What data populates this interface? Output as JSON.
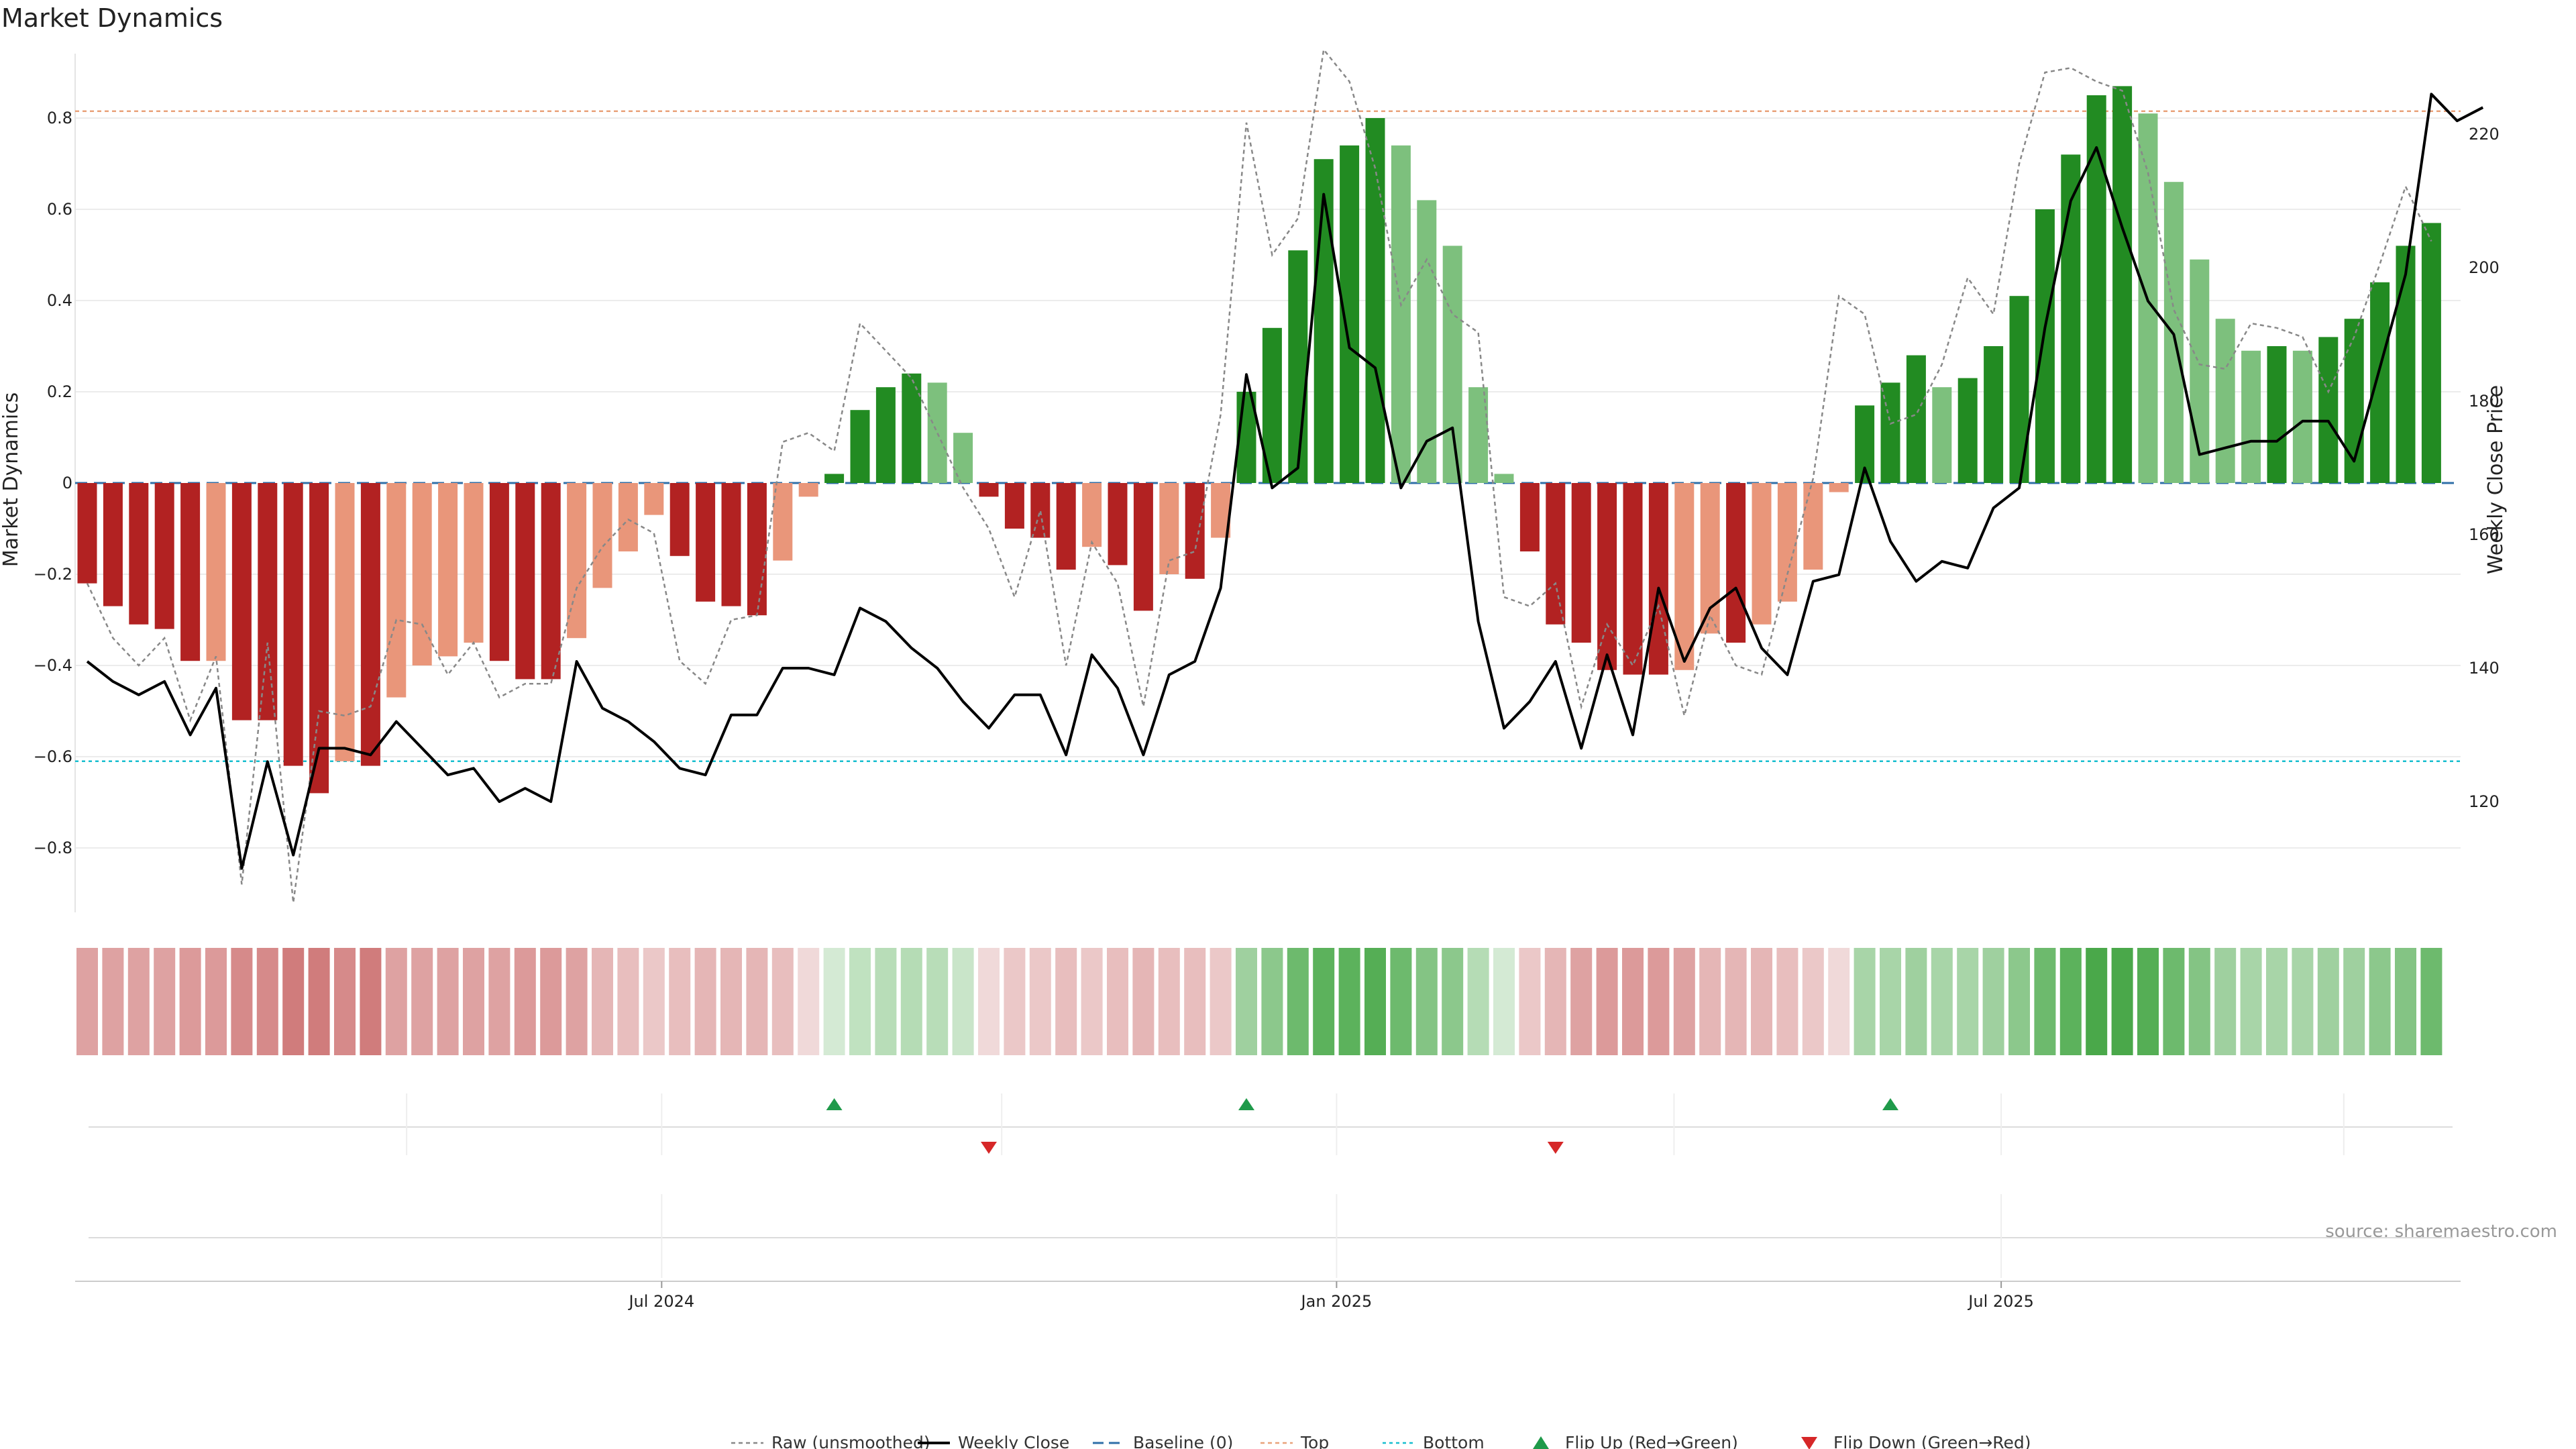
{
  "chart_data": {
    "type": "bar",
    "title": "Market Dynamics",
    "ylabel": "Market Dynamics",
    "y2label": "Weekly Close Price",
    "ylim": [
      -0.95,
      0.95
    ],
    "y2lim": [
      104,
      233
    ],
    "yticks": [
      "0.8",
      "0.6",
      "0.4",
      "0.2",
      "0",
      "−0.2",
      "−0.4",
      "−0.6",
      "−0.8"
    ],
    "y2ticks": [
      "220",
      "200",
      "180",
      "160",
      "140",
      "120"
    ],
    "xticks": [
      {
        "label": "Jul 2024",
        "week": 22.3
      },
      {
        "label": "Jan 2025",
        "week": 48.5
      },
      {
        "label": "Jul 2025",
        "week": 74.3
      }
    ],
    "top_line": 0.815,
    "bottom_line": -0.61,
    "baseline": 0,
    "values": [
      -0.22,
      -0.27,
      -0.31,
      -0.32,
      -0.39,
      -0.39,
      -0.52,
      -0.52,
      -0.62,
      -0.68,
      -0.61,
      -0.62,
      -0.47,
      -0.4,
      -0.38,
      -0.35,
      -0.39,
      -0.43,
      -0.43,
      -0.34,
      -0.23,
      -0.15,
      -0.07,
      -0.16,
      -0.26,
      -0.27,
      -0.29,
      -0.17,
      -0.03,
      0.02,
      0.16,
      0.21,
      0.24,
      0.22,
      0.11,
      -0.03,
      -0.1,
      -0.12,
      -0.19,
      -0.14,
      -0.18,
      -0.28,
      -0.2,
      -0.21,
      -0.12,
      0.2,
      0.34,
      0.51,
      0.71,
      0.74,
      0.8,
      0.74,
      0.62,
      0.52,
      0.21,
      0.02,
      -0.15,
      -0.31,
      -0.35,
      -0.41,
      -0.42,
      -0.42,
      -0.41,
      -0.33,
      -0.35,
      -0.31,
      -0.26,
      -0.19,
      -0.02,
      0.17,
      0.22,
      0.28,
      0.21,
      0.23,
      0.3,
      0.41,
      0.6,
      0.72,
      0.85,
      0.87,
      0.81,
      0.66,
      0.49,
      0.36,
      0.29,
      0.3,
      0.29,
      0.32,
      0.36,
      0.44,
      0.52,
      0.57
    ],
    "bar_colors": [
      "#b22222",
      "#b22222",
      "#b22222",
      "#b22222",
      "#b22222",
      "#e9967a",
      "#b22222",
      "#b22222",
      "#b22222",
      "#b22222",
      "#e9967a",
      "#b22222",
      "#e9967a",
      "#e9967a",
      "#e9967a",
      "#e9967a",
      "#b22222",
      "#b22222",
      "#b22222",
      "#e9967a",
      "#e9967a",
      "#e9967a",
      "#e9967a",
      "#b22222",
      "#b22222",
      "#b22222",
      "#b22222",
      "#e9967a",
      "#e9967a",
      "#228b22",
      "#228b22",
      "#228b22",
      "#228b22",
      "#7dc07d",
      "#7dc07d",
      "#b22222",
      "#b22222",
      "#b22222",
      "#b22222",
      "#e9967a",
      "#b22222",
      "#b22222",
      "#e9967a",
      "#b22222",
      "#e9967a",
      "#228b22",
      "#228b22",
      "#228b22",
      "#228b22",
      "#228b22",
      "#228b22",
      "#7dc07d",
      "#7dc07d",
      "#7dc07d",
      "#7dc07d",
      "#7dc07d",
      "#b22222",
      "#b22222",
      "#b22222",
      "#b22222",
      "#b22222",
      "#b22222",
      "#e9967a",
      "#e9967a",
      "#b22222",
      "#e9967a",
      "#e9967a",
      "#e9967a",
      "#e9967a",
      "#228b22",
      "#228b22",
      "#228b22",
      "#7dc07d",
      "#228b22",
      "#228b22",
      "#228b22",
      "#228b22",
      "#228b22",
      "#228b22",
      "#228b22",
      "#7dc07d",
      "#7dc07d",
      "#7dc07d",
      "#7dc07d",
      "#7dc07d",
      "#228b22",
      "#7dc07d",
      "#228b22",
      "#228b22",
      "#228b22",
      "#228b22",
      "#228b22"
    ],
    "raw": [
      -0.22,
      -0.34,
      -0.4,
      -0.34,
      -0.52,
      -0.38,
      -0.88,
      -0.35,
      -0.92,
      -0.5,
      -0.51,
      -0.49,
      -0.3,
      -0.31,
      -0.42,
      -0.35,
      -0.47,
      -0.44,
      -0.44,
      -0.23,
      -0.14,
      -0.08,
      -0.11,
      -0.39,
      -0.44,
      -0.3,
      -0.29,
      0.09,
      0.11,
      0.07,
      0.35,
      0.29,
      0.23,
      0.11,
      -0.01,
      -0.1,
      -0.25,
      -0.06,
      -0.4,
      -0.13,
      -0.22,
      -0.49,
      -0.17,
      -0.15,
      0.15,
      0.79,
      0.5,
      0.58,
      0.95,
      0.88,
      0.69,
      0.39,
      0.49,
      0.37,
      0.33,
      -0.25,
      -0.27,
      -0.22,
      -0.49,
      -0.31,
      -0.4,
      -0.27,
      -0.51,
      -0.29,
      -0.4,
      -0.42,
      -0.2,
      0.01,
      0.41,
      0.37,
      0.13,
      0.15,
      0.26,
      0.45,
      0.37,
      0.7,
      0.9,
      0.91,
      0.88,
      0.86,
      0.68,
      0.38,
      0.26,
      0.25,
      0.35,
      0.34,
      0.32,
      0.2,
      0.32,
      0.48,
      0.65,
      0.53
    ],
    "weekly_close": [
      141,
      138,
      136,
      138,
      130,
      137,
      110,
      126,
      112,
      128,
      128,
      127,
      132,
      128,
      124,
      125,
      120,
      122,
      120,
      141,
      134,
      132,
      129,
      125,
      124,
      133,
      133,
      140,
      140,
      139,
      149,
      147,
      143,
      140,
      135,
      131,
      136,
      136,
      127,
      142,
      137,
      127,
      139,
      141,
      152,
      184,
      167,
      170,
      211,
      188,
      185,
      167,
      174,
      176,
      147,
      131,
      135,
      141,
      128,
      142,
      130,
      152,
      141,
      149,
      152,
      143,
      139,
      153,
      154,
      170,
      159,
      153,
      156,
      155,
      164,
      167,
      191,
      210,
      218,
      206,
      195,
      190,
      172,
      173,
      174,
      174,
      177,
      177,
      171,
      185,
      199,
      226,
      222,
      224
    ],
    "color_strip": [
      "#dea2a2",
      "#dea2a2",
      "#dea2a2",
      "#dea2a2",
      "#dc9a9a",
      "#dc9a9a",
      "#d68a8a",
      "#d68a8a",
      "#d07c7c",
      "#d07c7c",
      "#d68a8a",
      "#d07c7c",
      "#dea2a2",
      "#dea2a2",
      "#dea2a2",
      "#dea2a2",
      "#dea2a2",
      "#dc9a9a",
      "#dc9a9a",
      "#dea2a2",
      "#e5b6b6",
      "#e8bebe",
      "#ebc8c8",
      "#e8bebe",
      "#e5b6b6",
      "#e5b6b6",
      "#e5b6b6",
      "#e8bebe",
      "#f0d9d9",
      "#d4ead4",
      "#c0e2c0",
      "#b8ddb8",
      "#b5dcb5",
      "#b8ddb8",
      "#c9e5c9",
      "#f0d9d9",
      "#ebc8c8",
      "#ebc8c8",
      "#e8bebe",
      "#ebc8c8",
      "#e8bebe",
      "#e5b6b6",
      "#e8bebe",
      "#e8bebe",
      "#ebc8c8",
      "#9fd09f",
      "#8cc88c",
      "#6dba6d",
      "#5cb25c",
      "#5cb25c",
      "#55ae55",
      "#6dba6d",
      "#84c484",
      "#8cc88c",
      "#b5dcb5",
      "#d4ead4",
      "#ebc8c8",
      "#e5b6b6",
      "#dea2a2",
      "#dc9a9a",
      "#dc9a9a",
      "#dc9a9a",
      "#dea2a2",
      "#e5b6b6",
      "#e5b6b6",
      "#e5b6b6",
      "#e8bebe",
      "#ebc8c8",
      "#f0d9d9",
      "#a8d5a8",
      "#a8d5a8",
      "#9fd09f",
      "#a8d5a8",
      "#a8d5a8",
      "#9fd09f",
      "#8cc88c",
      "#6dba6d",
      "#5cb25c",
      "#4aa84a",
      "#4aa84a",
      "#55ae55",
      "#6dba6d",
      "#84c484",
      "#9fd09f",
      "#a8d5a8",
      "#a8d5a8",
      "#a8d5a8",
      "#9fd09f",
      "#9fd09f",
      "#8cc88c",
      "#84c484",
      "#6dba6d"
    ],
    "flip_up_weeks": [
      29,
      45,
      70
    ],
    "flip_down_weeks": [
      35,
      57
    ],
    "colors": {
      "strong_red": "#b22222",
      "weak_red": "#e9967a",
      "strong_green": "#228b22",
      "weak_green": "#7dc07d",
      "weekly_close": "#000000",
      "raw": "#888888",
      "baseline": "#2f6fa8",
      "top": "#e9a27a",
      "bottom": "#17becf",
      "flip_up": "#1f9a4a",
      "flip_down": "#d62728"
    },
    "legend": [
      {
        "label": "Raw (unsmoothed)",
        "style": "raw"
      },
      {
        "label": "Weekly Close",
        "style": "close"
      },
      {
        "label": "Baseline (0)",
        "style": "baseline"
      },
      {
        "label": "Top",
        "style": "top"
      },
      {
        "label": "Bottom",
        "style": "bottom"
      },
      {
        "label": "Flip Up (Red→Green)",
        "style": "flip_up"
      },
      {
        "label": "Flip Down (Green→Red)",
        "style": "flip_down"
      }
    ],
    "source": "source: sharemaestro.com"
  }
}
